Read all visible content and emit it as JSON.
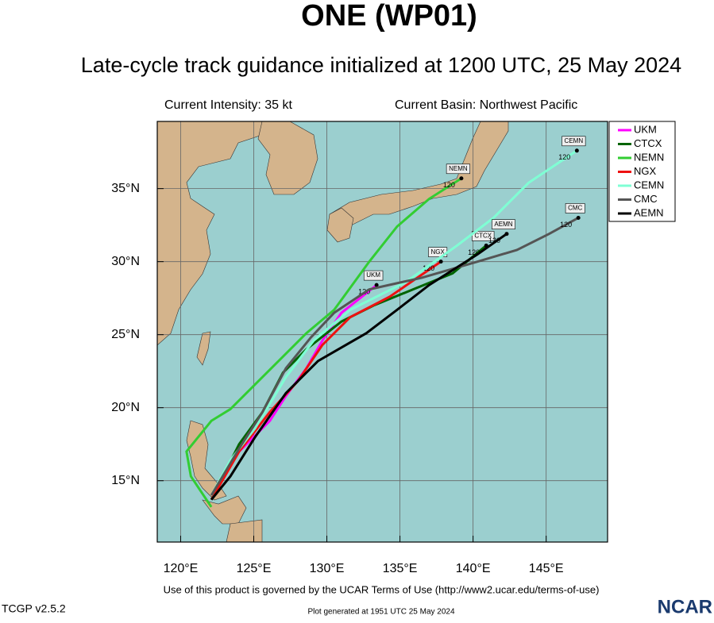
{
  "chart_data": {
    "type": "line",
    "title": "ONE (WP01)",
    "subtitle": "Late-cycle track guidance initialized at 1200 UTC, 25 May 2024",
    "intensity_note": "Current Intensity: 35 kt",
    "basin_note": "Current Basin: Northwest Pacific",
    "xlim": [
      118.4,
      149.2
    ],
    "ylim": [
      10.8,
      39.6
    ],
    "xticks": [
      {
        "value": 120,
        "label": "120°E"
      },
      {
        "value": 125,
        "label": "125°E"
      },
      {
        "value": 130,
        "label": "130°E"
      },
      {
        "value": 135,
        "label": "135°E"
      },
      {
        "value": 140,
        "label": "140°E"
      },
      {
        "value": 145,
        "label": "145°E"
      }
    ],
    "yticks": [
      {
        "value": 15,
        "label": "15°N"
      },
      {
        "value": 20,
        "label": "20°N"
      },
      {
        "value": 25,
        "label": "25°N"
      },
      {
        "value": 30,
        "label": "30°N"
      },
      {
        "value": 35,
        "label": "35°N"
      }
    ],
    "grid": true,
    "legend": "top-right",
    "series": [
      {
        "name": "UKM",
        "color": "#ff00ff",
        "end_hour": 120,
        "x": [
          122.1,
          124.0,
          126.1,
          127.2,
          128.6,
          129.7,
          131.0,
          132.4,
          133.4
        ],
        "y": [
          14.0,
          17.0,
          19.1,
          20.8,
          22.7,
          24.6,
          26.5,
          27.6,
          28.4
        ]
      },
      {
        "name": "CTCX",
        "color": "#006400",
        "end_hour": 120,
        "x": [
          122.1,
          124.0,
          125.6,
          127.0,
          128.6,
          131.0,
          133.2,
          135.9,
          138.6,
          140.9
        ],
        "y": [
          13.7,
          17.5,
          19.7,
          22.4,
          24.0,
          25.9,
          27.0,
          28.1,
          29.2,
          31.1
        ]
      },
      {
        "name": "NEMN",
        "color": "#32cd32",
        "end_hour": 120,
        "x": [
          122.1,
          120.7,
          120.4,
          122.1,
          123.4,
          125.6,
          127.0,
          128.6,
          130.5,
          132.9,
          134.8,
          137.0,
          139.2
        ],
        "y": [
          13.2,
          15.3,
          17.0,
          19.1,
          19.9,
          22.1,
          23.5,
          25.1,
          26.7,
          30.0,
          32.4,
          34.3,
          35.7
        ]
      },
      {
        "name": "NGX",
        "color": "#ee1111",
        "end_hour": 120,
        "x": [
          122.1,
          124.0,
          126.1,
          128.0,
          129.7,
          131.6,
          134.3,
          137.8
        ],
        "y": [
          13.7,
          17.0,
          19.7,
          21.8,
          24.3,
          26.2,
          27.6,
          30.0
        ]
      },
      {
        "name": "CEMN",
        "color": "#7fffd4",
        "end_hour": 120,
        "x": [
          122.1,
          123.4,
          125.1,
          127.2,
          129.1,
          131.6,
          135.4,
          138.9,
          141.4,
          143.8,
          147.1
        ],
        "y": [
          14.0,
          16.4,
          18.6,
          22.1,
          24.6,
          26.7,
          28.6,
          31.1,
          33.0,
          35.4,
          37.6
        ]
      },
      {
        "name": "CMC",
        "color": "#555555",
        "end_hour": 120,
        "x": [
          122.1,
          124.0,
          125.6,
          127.2,
          128.9,
          130.5,
          132.9,
          136.5,
          140.3,
          143.0,
          145.2,
          147.2
        ],
        "y": [
          14.0,
          17.2,
          19.7,
          22.7,
          24.8,
          26.5,
          28.1,
          28.9,
          30.0,
          30.8,
          31.9,
          33.0
        ]
      },
      {
        "name": "AEMN",
        "color": "#000000",
        "end_hour": 120,
        "x": [
          122.1,
          123.4,
          125.1,
          127.2,
          129.4,
          132.7,
          134.8,
          137.0,
          140.3,
          142.3
        ],
        "y": [
          13.7,
          15.3,
          18.0,
          21.0,
          23.2,
          25.1,
          26.7,
          28.4,
          30.5,
          31.9
        ]
      }
    ],
    "terms": "Use of this product is governed by the UCAR Terms of Use (http://www2.ucar.edu/terms-of-use)",
    "version": "TCGP v2.5.2",
    "generated": "Plot generated at 1951 UTC  25 May 2024",
    "logo": "NCAR"
  }
}
